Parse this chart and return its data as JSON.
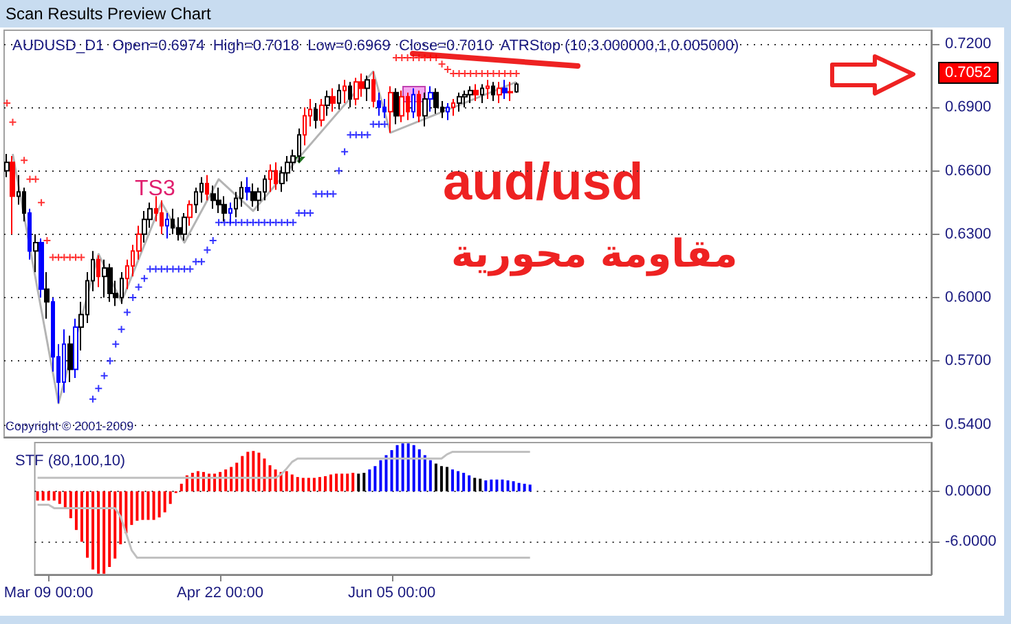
{
  "chart_data": [
    {
      "type": "candlestick",
      "title": "Scan Results Preview Chart",
      "subtitle": "AUDUSD_D1  Open=0.6974  High=0.7018  Low=0.6969  Close=0.7010  ATRStop (10,3.000000,1,0.005000)",
      "categories": [
        null,
        null,
        null,
        null,
        null,
        null,
        null,
        null,
        null,
        null,
        null,
        null,
        null,
        null,
        null,
        null,
        null,
        null,
        null,
        null,
        null,
        null,
        null,
        null,
        null,
        null,
        null,
        null,
        null,
        null,
        null,
        null,
        null,
        null,
        null,
        null,
        null,
        null,
        null,
        null,
        null,
        null,
        null,
        null,
        null,
        null,
        null,
        null,
        null,
        null,
        null,
        null,
        null,
        null,
        null,
        null,
        null,
        null,
        null,
        null,
        null,
        null,
        null,
        null,
        null,
        null,
        null,
        null,
        null,
        null,
        null,
        null,
        null,
        null,
        null,
        null,
        null,
        null,
        null,
        null,
        null,
        null,
        null,
        null,
        null,
        null,
        null,
        null,
        null,
        null,
        null,
        null,
        null,
        null,
        null,
        null,
        null,
        null,
        null,
        null,
        null,
        null,
        null,
        null,
        null,
        null,
        null,
        null,
        null,
        null,
        null,
        null,
        null,
        null,
        null,
        null,
        null,
        null,
        null,
        null,
        null,
        null,
        null,
        null,
        null,
        null,
        null,
        null,
        null,
        null,
        null,
        null,
        null,
        null,
        null,
        null,
        null,
        null,
        null,
        null,
        null,
        null,
        null,
        null,
        null,
        null,
        null,
        null,
        null,
        null,
        null,
        null,
        null,
        null,
        null,
        null,
        null,
        null,
        null,
        null,
        null,
        null
      ],
      "ohlc": [
        [
          0.66,
          0.668,
          0.657,
          0.664
        ],
        [
          0.664,
          0.667,
          0.63,
          0.648
        ],
        [
          0.648,
          0.658,
          0.644,
          0.65
        ],
        [
          0.65,
          0.652,
          0.636,
          0.64
        ],
        [
          0.64,
          0.642,
          0.618,
          0.622
        ],
        [
          0.622,
          0.63,
          0.612,
          0.626
        ],
        [
          0.626,
          0.628,
          0.6,
          0.604
        ],
        [
          0.604,
          0.612,
          0.59,
          0.598
        ],
        [
          0.598,
          0.6,
          0.565,
          0.572
        ],
        [
          0.572,
          0.578,
          0.55,
          0.56
        ],
        [
          0.56,
          0.585,
          0.555,
          0.578
        ],
        [
          0.578,
          0.582,
          0.56,
          0.566
        ],
        [
          0.566,
          0.59,
          0.562,
          0.586
        ],
        [
          0.586,
          0.598,
          0.575,
          0.592
        ],
        [
          0.592,
          0.612,
          0.588,
          0.608
        ],
        [
          0.608,
          0.622,
          0.603,
          0.618
        ],
        [
          0.618,
          0.62,
          0.605,
          0.61
        ],
        [
          0.61,
          0.618,
          0.6,
          0.614
        ],
        [
          0.614,
          0.616,
          0.598,
          0.602
        ],
        [
          0.602,
          0.608,
          0.596,
          0.6
        ],
        [
          0.6,
          0.612,
          0.597,
          0.609
        ],
        [
          0.609,
          0.618,
          0.604,
          0.615
        ],
        [
          0.615,
          0.625,
          0.61,
          0.622
        ],
        [
          0.622,
          0.634,
          0.618,
          0.63
        ],
        [
          0.63,
          0.641,
          0.626,
          0.637
        ],
        [
          0.637,
          0.645,
          0.633,
          0.642
        ],
        [
          0.642,
          0.648,
          0.636,
          0.64
        ],
        [
          0.64,
          0.646,
          0.63,
          0.634
        ],
        [
          0.634,
          0.64,
          0.628,
          0.637
        ],
        [
          0.637,
          0.642,
          0.63,
          0.633
        ],
        [
          0.633,
          0.638,
          0.627,
          0.63
        ],
        [
          0.63,
          0.64,
          0.627,
          0.638
        ],
        [
          0.638,
          0.646,
          0.634,
          0.644
        ],
        [
          0.644,
          0.652,
          0.64,
          0.65
        ],
        [
          0.65,
          0.657,
          0.645,
          0.654
        ],
        [
          0.654,
          0.658,
          0.646,
          0.649
        ],
        [
          0.649,
          0.653,
          0.642,
          0.646
        ],
        [
          0.646,
          0.652,
          0.64,
          0.644
        ],
        [
          0.644,
          0.648,
          0.636,
          0.64
        ],
        [
          0.64,
          0.645,
          0.635,
          0.642
        ],
        [
          0.642,
          0.65,
          0.638,
          0.647
        ],
        [
          0.647,
          0.655,
          0.643,
          0.652
        ],
        [
          0.652,
          0.657,
          0.646,
          0.65
        ],
        [
          0.65,
          0.654,
          0.643,
          0.646
        ],
        [
          0.646,
          0.652,
          0.641,
          0.65
        ],
        [
          0.65,
          0.658,
          0.646,
          0.656
        ],
        [
          0.656,
          0.663,
          0.65,
          0.66
        ],
        [
          0.66,
          0.664,
          0.651,
          0.654
        ],
        [
          0.654,
          0.662,
          0.65,
          0.659
        ],
        [
          0.659,
          0.667,
          0.655,
          0.664
        ],
        [
          0.664,
          0.67,
          0.66,
          0.667
        ],
        [
          0.667,
          0.68,
          0.664,
          0.677
        ],
        [
          0.677,
          0.69,
          0.672,
          0.686
        ],
        [
          0.686,
          0.694,
          0.681,
          0.689
        ],
        [
          0.689,
          0.692,
          0.68,
          0.684
        ],
        [
          0.684,
          0.694,
          0.681,
          0.691
        ],
        [
          0.691,
          0.698,
          0.686,
          0.695
        ],
        [
          0.695,
          0.699,
          0.688,
          0.692
        ],
        [
          0.692,
          0.701,
          0.689,
          0.698
        ],
        [
          0.698,
          0.703,
          0.692,
          0.7
        ],
        [
          0.7,
          0.702,
          0.69,
          0.694
        ],
        [
          0.694,
          0.704,
          0.691,
          0.702
        ],
        [
          0.702,
          0.706,
          0.695,
          0.699
        ],
        [
          0.699,
          0.705,
          0.693,
          0.703
        ],
        [
          0.703,
          0.707,
          0.69,
          0.693
        ],
        [
          0.693,
          0.697,
          0.686,
          0.69
        ],
        [
          0.69,
          0.694,
          0.685,
          0.688
        ],
        [
          0.688,
          0.7,
          0.678,
          0.697
        ],
        [
          0.697,
          0.699,
          0.682,
          0.686
        ],
        [
          0.686,
          0.698,
          0.683,
          0.695
        ],
        [
          0.695,
          0.697,
          0.684,
          0.688
        ],
        [
          0.688,
          0.699,
          0.685,
          0.696
        ],
        [
          0.696,
          0.698,
          0.683,
          0.686
        ],
        [
          0.686,
          0.697,
          0.681,
          0.694
        ],
        [
          0.694,
          0.7,
          0.688,
          0.697
        ],
        [
          0.697,
          0.699,
          0.687,
          0.69
        ],
        [
          0.69,
          0.693,
          0.685,
          0.688
        ],
        [
          0.688,
          0.692,
          0.684,
          0.69
        ],
        [
          0.69,
          0.694,
          0.686,
          0.692
        ],
        [
          0.692,
          0.697,
          0.688,
          0.695
        ],
        [
          0.695,
          0.698,
          0.69,
          0.696
        ],
        [
          0.696,
          0.7,
          0.692,
          0.698
        ],
        [
          0.698,
          0.701,
          0.693,
          0.696
        ],
        [
          0.696,
          0.701,
          0.692,
          0.699
        ],
        [
          0.699,
          0.703,
          0.694,
          0.7
        ],
        [
          0.7,
          0.702,
          0.693,
          0.696
        ],
        [
          0.696,
          0.702,
          0.692,
          0.699
        ],
        [
          0.699,
          0.703,
          0.694,
          0.697
        ],
        [
          0.697,
          0.702,
          0.693,
          0.6974
        ],
        [
          0.6974,
          0.7018,
          0.6969,
          0.701
        ],
        null,
        null,
        null,
        null,
        null,
        null,
        null,
        null,
        null,
        null,
        null,
        null,
        null,
        null,
        null,
        null,
        null,
        null,
        null,
        null,
        null,
        null,
        null,
        null,
        null,
        null,
        null,
        null,
        null,
        null,
        null,
        null,
        null,
        null,
        null,
        null,
        null,
        null,
        null,
        null,
        null,
        null,
        null,
        null,
        null,
        null,
        null,
        null,
        null,
        null,
        null,
        null,
        null,
        null,
        null,
        null,
        null,
        null,
        null,
        null,
        null,
        null,
        null,
        null,
        null,
        null,
        null,
        null,
        null,
        null,
        null,
        null
      ],
      "colors": [
        "#000000",
        "#ff0000",
        "#000000",
        "#000000",
        "#0000ff",
        "#000000",
        "#0000ff",
        "#000000",
        "#0000ff",
        "#0000ff",
        "#0000ff",
        "#000000",
        "#0000ff",
        "#000000",
        "#000000",
        "#000000",
        "#ff0000",
        "#000000",
        "#000000",
        "#000000",
        "#000000",
        "#ff0000",
        "#ff0000",
        "#ff0000",
        "#000000",
        "#000000",
        "#ff0000",
        "#ff0000",
        "#0000ff",
        "#000000",
        "#000000",
        "#000000",
        "#ff0000",
        "#000000",
        "#000000",
        "#ff0000",
        "#000000",
        "#000000",
        "#000000",
        "#0000ff",
        "#000000",
        "#000000",
        "#0000ff",
        "#000000",
        "#000000",
        "#000000",
        "#ff0000",
        "#ff0000",
        "#000000",
        "#000000",
        "#000000",
        "#000000",
        "#ff0000",
        "#ff0000",
        "#000000",
        "#ff0000",
        "#000000",
        "#ff0000",
        "#000000",
        "#ff0000",
        "#000000",
        "#ff0000",
        "#ff0000",
        "#000000",
        "#ff0000",
        "#0000ff",
        "#0000ff",
        "#ff0000",
        "#000000",
        "#ff0000",
        "#ff0000",
        "#0000ff",
        "#ff0000",
        "#000000",
        "#0000ff",
        "#000000",
        "#000000",
        "#0000ff",
        "#ff0000",
        "#000000",
        "#000000",
        "#000000",
        "#ff0000",
        "#000000",
        "#ff0000",
        "#000000",
        "#ff0000",
        "#0000ff",
        "#ff0000",
        "#000000",
        null,
        null,
        null,
        null,
        null,
        null,
        null,
        null,
        null,
        null,
        null,
        null,
        null,
        null,
        null,
        null,
        null,
        null,
        null,
        null,
        null,
        null,
        null,
        null,
        null,
        null,
        null,
        null,
        null,
        null,
        null,
        null,
        null,
        null,
        null,
        null,
        null,
        null,
        null,
        null,
        null,
        null,
        null,
        null,
        null,
        null,
        null,
        null,
        null,
        null,
        null,
        null,
        null,
        null,
        null,
        null,
        null,
        null,
        null,
        null,
        null,
        null,
        null,
        null,
        null,
        null,
        null,
        null,
        null,
        null,
        null,
        null
      ],
      "series": [
        {
          "type": "scatter",
          "marker": "cross",
          "color": "#ff0000",
          "values": [
            0.692,
            0.683,
            null,
            0.665,
            0.656,
            0.656,
            0.645,
            0.627,
            0.619,
            0.619,
            0.619,
            0.619,
            0.619,
            0.619,
            null,
            null,
            null,
            null,
            null,
            null,
            null,
            null,
            null,
            null,
            null,
            null,
            null,
            null,
            null,
            null,
            null,
            null,
            null,
            null,
            null,
            null,
            null,
            null,
            null,
            null,
            null,
            null,
            null,
            null,
            null,
            null,
            null,
            null,
            null,
            null,
            null,
            null,
            null,
            null,
            null,
            null,
            null,
            null,
            null,
            null,
            null,
            null,
            null,
            null,
            null,
            null,
            null,
            null,
            0.7135,
            0.7135,
            0.7135,
            0.7135,
            0.7135,
            0.7135,
            0.7135,
            0.7135,
            0.7105,
            0.708,
            0.706,
            0.706,
            0.706,
            0.706,
            0.706,
            0.706,
            0.706,
            0.706,
            0.706,
            0.706,
            0.706,
            0.706,
            null,
            null,
            null,
            null,
            null,
            null,
            null,
            null,
            null,
            null,
            null,
            null,
            null,
            null,
            null,
            null,
            null,
            null,
            null,
            null,
            null,
            null,
            null,
            null,
            null,
            null,
            null,
            null,
            null,
            null,
            null,
            null,
            null,
            null,
            null,
            null,
            null,
            null,
            null,
            null,
            null,
            null,
            null,
            null,
            null,
            null,
            null,
            null,
            null,
            null,
            null,
            null,
            null,
            null,
            null,
            null,
            null,
            null,
            null,
            null,
            null,
            null,
            null,
            null,
            null,
            null,
            null,
            null,
            null,
            null,
            null,
            null
          ]
        },
        {
          "type": "scatter",
          "marker": "cross",
          "color": "#0000ff",
          "values": [
            null,
            null,
            null,
            null,
            null,
            null,
            null,
            null,
            null,
            null,
            null,
            null,
            null,
            null,
            null,
            0.552,
            0.557,
            0.563,
            0.57,
            0.578,
            0.585,
            0.593,
            0.6,
            0.605,
            0.609,
            0.6135,
            0.6135,
            0.6135,
            0.6135,
            0.6135,
            0.6135,
            0.6135,
            0.6135,
            0.617,
            0.617,
            0.6225,
            0.627,
            0.6355,
            0.6355,
            0.6355,
            0.6355,
            0.6355,
            0.6355,
            0.6355,
            0.6355,
            0.6355,
            0.6355,
            0.6355,
            0.6355,
            0.6355,
            0.6355,
            0.64,
            0.64,
            0.64,
            0.649,
            0.649,
            0.649,
            0.649,
            0.66,
            0.669,
            0.677,
            0.677,
            0.677,
            0.677,
            0.682,
            0.682,
            0.682,
            null,
            null,
            null,
            null,
            null,
            null,
            null,
            null,
            null,
            null,
            null,
            null,
            null,
            null,
            null,
            null,
            null,
            null,
            null,
            null,
            null,
            null,
            null,
            null,
            null,
            null,
            null,
            null,
            null,
            null,
            null,
            null,
            null,
            null,
            null,
            null,
            null,
            null,
            null,
            null,
            null,
            null,
            null,
            null,
            null,
            null,
            null,
            null,
            null,
            null,
            null,
            null,
            null,
            null,
            null,
            null,
            null,
            null,
            null,
            null,
            null,
            null,
            null,
            null,
            null,
            null,
            null,
            null,
            null,
            null,
            null,
            null,
            null,
            null,
            null,
            null,
            null,
            null,
            null,
            null,
            null,
            null,
            null,
            null,
            null,
            null,
            null,
            null,
            null,
            null,
            null,
            null,
            null,
            null,
            null
          ]
        },
        {
          "type": "line",
          "color": "#b4b4b4",
          "values": [
            null,
            0.668,
            null,
            null,
            null,
            null,
            null,
            null,
            null,
            0.55,
            null,
            null,
            null,
            null,
            null,
            null,
            0.6206,
            null,
            null,
            null,
            0.598,
            null,
            null,
            null,
            null,
            null,
            null,
            0.645,
            null,
            null,
            null,
            0.626,
            null,
            null,
            null,
            null,
            null,
            0.656,
            null,
            null,
            null,
            null,
            null,
            0.641,
            null,
            null,
            null,
            null,
            null,
            null,
            null,
            null,
            null,
            null,
            null,
            null,
            null,
            null,
            null,
            null,
            null,
            null,
            null,
            null,
            0.707,
            null,
            null,
            0.678,
            null,
            null,
            null,
            null,
            null,
            null,
            null,
            null,
            null,
            null,
            null,
            null,
            null,
            null,
            null,
            null,
            null,
            null,
            null,
            null,
            null,
            0.702,
            null,
            null,
            null,
            null,
            null,
            null,
            null,
            null,
            null,
            null,
            null,
            null,
            null,
            null,
            null,
            null,
            null,
            null,
            null,
            null,
            null,
            null,
            null,
            null,
            null,
            null,
            null,
            null,
            null,
            null,
            null,
            null,
            null,
            null,
            null,
            null,
            null,
            null,
            null,
            null,
            null,
            null,
            null,
            null,
            null,
            null,
            null,
            null,
            null,
            null,
            null,
            null,
            null,
            null,
            null,
            null,
            null,
            null,
            null,
            null,
            null,
            null,
            null,
            null,
            null,
            null,
            null,
            null,
            null,
            null,
            null,
            null
          ]
        }
      ],
      "ylim": [
        0.534,
        0.7265
      ],
      "yticks": [
        {
          "value": 0.54,
          "label": "0.5400"
        },
        {
          "value": 0.57,
          "label": "0.5700"
        },
        {
          "value": 0.6,
          "label": "0.6000"
        },
        {
          "value": 0.63,
          "label": "0.6300"
        },
        {
          "value": 0.66,
          "label": "0.6600"
        },
        {
          "value": 0.69,
          "label": "0.6900"
        },
        {
          "value": 0.72,
          "label": "0.7200"
        }
      ],
      "grid": "y",
      "tick_labels": "y",
      "annotations": [
        "TS3",
        "aud/usd",
        "مقاومة محورية",
        "Copyright © 2001-2009",
        "0.7052"
      ]
    },
    {
      "type": "bar",
      "title": "STF (80,100,10)",
      "categories": [
        null,
        null,
        "Mar 09 00:00",
        null,
        null,
        null,
        null,
        null,
        null,
        null,
        null,
        null,
        null,
        null,
        null,
        null,
        null,
        null,
        null,
        null,
        null,
        null,
        null,
        null,
        null,
        null,
        null,
        null,
        null,
        null,
        null,
        null,
        null,
        "Apr 22 00:00",
        null,
        null,
        null,
        null,
        null,
        null,
        null,
        null,
        null,
        null,
        null,
        null,
        null,
        null,
        null,
        null,
        null,
        null,
        null,
        null,
        null,
        null,
        null,
        null,
        null,
        null,
        null,
        null,
        null,
        null,
        "Jun 05 00:00",
        null,
        null,
        null,
        null,
        null,
        null,
        null,
        null,
        null,
        null,
        null,
        null,
        null,
        null,
        null,
        null,
        null,
        null,
        null,
        null,
        null,
        null,
        null,
        null,
        null,
        null,
        null,
        null,
        null,
        null,
        null,
        null,
        null,
        null,
        null,
        null,
        null,
        null,
        null,
        null,
        null,
        null,
        null,
        null,
        null,
        null,
        null,
        null,
        null,
        null,
        null,
        null,
        null,
        null,
        null,
        null,
        null,
        null,
        null,
        null,
        null,
        null,
        null,
        null,
        null,
        null,
        null,
        null,
        null,
        null,
        null,
        null,
        null,
        null,
        null,
        null,
        null,
        null,
        null,
        null,
        null,
        null,
        null,
        null,
        null,
        null,
        null,
        null,
        null,
        null,
        null,
        null,
        null,
        null,
        null,
        null,
        null
      ],
      "series": [
        {
          "type": "bar",
          "values": [
            -1.1,
            -1.1,
            -1.1,
            -1.1,
            -1.5,
            -2.1,
            -3.2,
            -4.6,
            -6.0,
            -7.9,
            -9.3,
            -9.8,
            -9.8,
            -9.0,
            -8.0,
            -6.3,
            -5.0,
            -4.0,
            -3.5,
            -3.4,
            -3.4,
            -3.4,
            -3.1,
            -2.5,
            -1.5,
            -0.2,
            0.9,
            1.9,
            2.2,
            2.4,
            2.3,
            2.1,
            2.1,
            2.3,
            2.6,
            2.9,
            3.4,
            4.2,
            4.7,
            4.8,
            4.6,
            3.9,
            3.1,
            2.6,
            2.3,
            2.4,
            2.0,
            1.7,
            1.6,
            1.6,
            1.6,
            1.7,
            1.8,
            2.0,
            2.1,
            2.1,
            2.1,
            2.2,
            2.1,
            2.2,
            2.6,
            3.0,
            3.7,
            4.3,
            4.9,
            5.5,
            5.7,
            5.7,
            5.5,
            5.0,
            4.3,
            3.7,
            3.3,
            3.0,
            2.9,
            2.6,
            2.4,
            2.2,
            1.9,
            1.6,
            1.5,
            1.3,
            1.4,
            1.4,
            1.4,
            1.3,
            1.2,
            1.0,
            0.9,
            0.8,
            null,
            null,
            null,
            null,
            null,
            null,
            null,
            null,
            null,
            null,
            null,
            null,
            null,
            null,
            null,
            null,
            null,
            null,
            null,
            null,
            null,
            null,
            null,
            null,
            null,
            null,
            null,
            null,
            null,
            null,
            null,
            null,
            null,
            null,
            null,
            null,
            null,
            null,
            null,
            null,
            null,
            null,
            null,
            null,
            null,
            null,
            null,
            null,
            null,
            null,
            null,
            null,
            null,
            null,
            null,
            null,
            null,
            null,
            null,
            null,
            null,
            null,
            null,
            null,
            null,
            null,
            null,
            null,
            null,
            null,
            null,
            null
          ],
          "colors": [
            "#ff0000",
            "#ff0000",
            "#ff0000",
            "#ff0000",
            "#ff0000",
            "#ff0000",
            "#ff0000",
            "#ff0000",
            "#ff0000",
            "#ff0000",
            "#ff0000",
            "#ff0000",
            "#ff0000",
            "#ff0000",
            "#ff0000",
            "#ff0000",
            "#ff0000",
            "#ff0000",
            "#ff0000",
            "#ff0000",
            "#ff0000",
            "#ff0000",
            "#ff0000",
            "#ff0000",
            "#ff0000",
            "#ff0000",
            "#ff0000",
            "#ff0000",
            "#ff0000",
            "#ff0000",
            "#ff0000",
            "#ff0000",
            "#ff0000",
            "#ff0000",
            "#ff0000",
            "#ff0000",
            "#ff0000",
            "#ff0000",
            "#ff0000",
            "#ff0000",
            "#ff0000",
            "#ff0000",
            "#ff0000",
            "#ff0000",
            "#ff0000",
            "#ff0000",
            "#ff0000",
            "#ff0000",
            "#ff0000",
            "#ff0000",
            "#ff0000",
            "#ff0000",
            "#ff0000",
            "#ff0000",
            "#ff0000",
            "#ff0000",
            "#ff0000",
            "#ff0000",
            "#000000",
            "#000000",
            "#0000ff",
            "#0000ff",
            "#0000ff",
            "#0000ff",
            "#0000ff",
            "#0000ff",
            "#0000ff",
            "#0000ff",
            "#0000ff",
            "#0000ff",
            "#0000ff",
            "#0000ff",
            "#000000",
            "#000000",
            "#000000",
            "#0000ff",
            "#0000ff",
            "#0000ff",
            "#0000ff",
            "#000000",
            "#000000",
            "#0000ff",
            "#0000ff",
            "#0000ff",
            "#0000ff",
            "#0000ff",
            "#0000ff",
            "#0000ff",
            "#0000ff",
            "#0000ff",
            null,
            null,
            null,
            null,
            null,
            null,
            null,
            null,
            null,
            null,
            null,
            null,
            null,
            null,
            null,
            null,
            null,
            null,
            null,
            null,
            null,
            null,
            null,
            null,
            null,
            null,
            null,
            null,
            null,
            null,
            null,
            null,
            null,
            null,
            null,
            null,
            null,
            null,
            null,
            null,
            null,
            null,
            null,
            null,
            null,
            null,
            null,
            null,
            null,
            null,
            null,
            null,
            null,
            null,
            null,
            null,
            null,
            null,
            null,
            null,
            null,
            null,
            null,
            null,
            null,
            null,
            null,
            null,
            null,
            null,
            null,
            null
          ]
        },
        {
          "type": "line",
          "color": "#c0c0c0",
          "values": [
            1.6,
            1.6,
            1.6,
            1.6,
            1.6,
            1.6,
            1.6,
            1.6,
            1.6,
            1.6,
            1.6,
            1.6,
            1.6,
            1.6,
            1.6,
            1.6,
            1.6,
            1.6,
            1.6,
            1.6,
            1.6,
            1.6,
            1.6,
            1.6,
            1.6,
            1.6,
            1.6,
            1.6,
            1.6,
            1.6,
            1.6,
            1.6,
            1.6,
            1.6,
            1.6,
            1.6,
            1.6,
            1.6,
            1.6,
            1.6,
            1.6,
            1.6,
            1.6,
            1.6,
            2.0,
            2.7,
            3.5,
            3.9,
            3.9,
            3.9,
            3.9,
            3.9,
            3.9,
            3.9,
            3.9,
            3.9,
            3.9,
            3.9,
            3.9,
            3.9,
            3.9,
            3.9,
            3.9,
            3.9,
            3.9,
            3.9,
            3.9,
            3.9,
            3.9,
            3.9,
            3.9,
            3.9,
            3.9,
            3.9,
            4.4,
            4.7,
            4.7,
            4.7,
            4.7,
            4.7,
            4.7,
            4.7,
            4.7,
            4.7,
            4.7,
            4.7,
            4.7,
            4.7,
            4.7,
            4.7,
            null,
            null,
            null,
            null,
            null,
            null,
            null,
            null,
            null,
            null,
            null,
            null,
            null,
            null,
            null,
            null,
            null,
            null,
            null,
            null,
            null,
            null,
            null,
            null,
            null,
            null,
            null,
            null,
            null,
            null,
            null,
            null,
            null,
            null,
            null,
            null,
            null,
            null,
            null,
            null,
            null,
            null,
            null,
            null,
            null,
            null,
            null,
            null,
            null,
            null,
            null,
            null,
            null,
            null,
            null,
            null,
            null,
            null,
            null,
            null,
            null,
            null,
            null,
            null,
            null,
            null,
            null,
            null,
            null,
            null,
            null,
            null
          ]
        },
        {
          "type": "line",
          "color": "#c0c0c0",
          "values": [
            -1.6,
            -1.6,
            -1.6,
            -2.0,
            -2.0,
            -2.0,
            -2.0,
            -2.0,
            -2.0,
            -2.0,
            -2.0,
            -2.0,
            -2.0,
            -2.0,
            -2.0,
            -3.0,
            -5.0,
            -7.0,
            -7.9,
            -7.9,
            -7.9,
            -7.9,
            -7.9,
            -7.9,
            -7.9,
            -7.9,
            -7.9,
            -7.9,
            -7.9,
            -7.9,
            -7.9,
            -7.9,
            -7.9,
            -7.9,
            -7.9,
            -7.9,
            -7.9,
            -7.9,
            -7.9,
            -7.9,
            -7.9,
            -7.9,
            -7.9,
            -7.9,
            -7.9,
            -7.9,
            -7.9,
            -7.9,
            -7.9,
            -7.9,
            -7.9,
            -7.9,
            -7.9,
            -7.9,
            -7.9,
            -7.9,
            -7.9,
            -7.9,
            -7.9,
            -7.9,
            -7.9,
            -7.9,
            -7.9,
            -7.9,
            -7.9,
            -7.9,
            -7.9,
            -7.9,
            -7.9,
            -7.9,
            -7.9,
            -7.9,
            -7.9,
            -7.9,
            -7.9,
            -7.9,
            -7.9,
            -7.9,
            -7.9,
            -7.9,
            -7.9,
            -7.9,
            -7.9,
            -7.9,
            -7.9,
            -7.9,
            -7.9,
            -7.9,
            -7.9,
            -7.9,
            null,
            null,
            null,
            null,
            null,
            null,
            null,
            null,
            null,
            null,
            null,
            null,
            null,
            null,
            null,
            null,
            null,
            null,
            null,
            null,
            null,
            null,
            null,
            null,
            null,
            null,
            null,
            null,
            null,
            null,
            null,
            null,
            null,
            null,
            null,
            null,
            null,
            null,
            null,
            null,
            null,
            null,
            null,
            null,
            null,
            null,
            null,
            null,
            null,
            null,
            null,
            null,
            null,
            null,
            null,
            null,
            null,
            null,
            null,
            null,
            null,
            null,
            null,
            null,
            null,
            null,
            null,
            null,
            null,
            null,
            null,
            null
          ]
        }
      ],
      "ylim": [
        -9.9,
        5.8
      ],
      "yticks": [
        {
          "value": -6,
          "label": "-6.0000"
        },
        {
          "value": 0,
          "label": "0.0000"
        }
      ],
      "grid": "y"
    }
  ]
}
